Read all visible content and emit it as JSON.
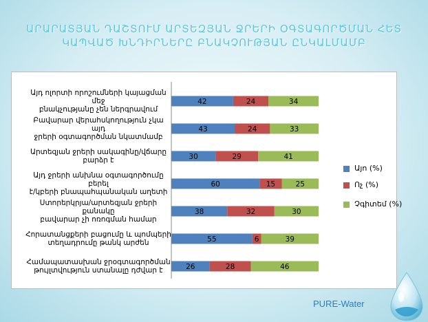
{
  "title_lines": [
    "ԱՐԱՐԱՏՅԱՆ ԴԱՇՏՈՒՄ ԱՐՏԵԶՅԱՆ ՋՐԵՐԻ ՕԳՏԱԳՈՐԾՄԱՆ ՀԵՏ",
    "ԿԱՊՎԱԾ ԽՆԴԻՐՆԵՐԸ ԲՆԱԿՉՈՒԹՅԱՆ ԸՆԿԱԼՄԱՄԲ"
  ],
  "brand": "PURE-Water",
  "colors": {
    "title": "#5cc6de",
    "series": [
      "#4f81bd",
      "#c0504d",
      "#9bbb59"
    ]
  },
  "chart_data": {
    "type": "bar",
    "orientation": "horizontal",
    "stacked": true,
    "xlim": [
      0,
      100
    ],
    "grid": false,
    "legend": "right",
    "categories": [
      [
        "Այդ ոլորտի որոշումների կայացման մեջ",
        "բնակչությանը չեն ներգրավում"
      ],
      [
        "Բավարար վերահսկողություն չկա այդ",
        "ջրերի օգտագործման նկատմամբ"
      ],
      [
        "Արտեզյան ջրերի սակագինը/վճարը",
        "բարձր է"
      ],
      [
        "Այդ ջրերի անխնա օգտագործումը բերել",
        "է/կբերի բնապահպանական աղետի"
      ],
      [
        "Ստորերկրյա/արտեզյան ջրերի քանակը",
        "բավարար չի ոռոգման համար"
      ],
      [
        "Հորատանցքերի բացումը և պոմպերի",
        "տեղադրումը թանկ արժեն"
      ],
      [
        "Համապատասխան ջրօգտագործման",
        "թույլտվություն ստանալը դժվար է"
      ]
    ],
    "series": [
      {
        "name": "Այո (%)",
        "values": [
          42,
          43,
          30,
          60,
          38,
          55,
          26
        ]
      },
      {
        "name": "Ոչ (%)",
        "values": [
          24,
          24,
          29,
          15,
          32,
          6,
          28
        ]
      },
      {
        "name": "Չգիտեմ (%)",
        "values": [
          34,
          33,
          41,
          25,
          30,
          39,
          46
        ]
      }
    ]
  }
}
